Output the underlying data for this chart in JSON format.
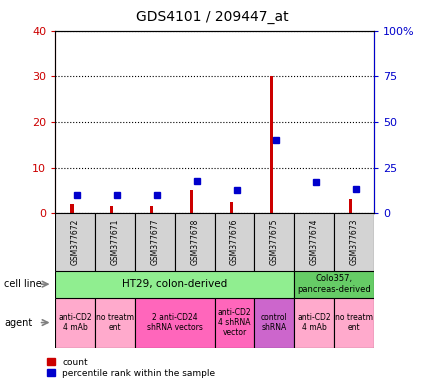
{
  "title": "GDS4101 / 209447_at",
  "samples": [
    "GSM377672",
    "GSM377671",
    "GSM377677",
    "GSM377678",
    "GSM377676",
    "GSM377675",
    "GSM377674",
    "GSM377673"
  ],
  "red_values": [
    2.0,
    1.5,
    1.5,
    5.0,
    2.5,
    30.0,
    0.0,
    3.0
  ],
  "blue_values": [
    10.0,
    10.0,
    10.0,
    17.5,
    12.5,
    40.0,
    17.0,
    13.0
  ],
  "ylim_left": [
    0,
    40
  ],
  "ylim_right": [
    0,
    100
  ],
  "yticks_left": [
    0,
    10,
    20,
    30,
    40
  ],
  "ytick_labels_left": [
    "0",
    "10",
    "20",
    "30",
    "40"
  ],
  "yticks_right": [
    0,
    25,
    50,
    75,
    100
  ],
  "ytick_labels_right": [
    "0",
    "25",
    "50",
    "75",
    "100%"
  ],
  "bar_width": 0.08,
  "red_color": "#CC0000",
  "blue_color": "#0000CC",
  "bg_color": "#FFFFFF",
  "sample_box_color": "#D3D3D3",
  "cell_line_ht29_color": "#90EE90",
  "cell_line_colo_color": "#66CC66",
  "agent_light_pink": "#FFAACC",
  "agent_mid_pink": "#FF66BB",
  "agent_purple": "#CC66CC",
  "agent_data": [
    {
      "start": 0,
      "end": 1,
      "label": "anti-CD2\n4 mAb",
      "color": "#FFAACC"
    },
    {
      "start": 1,
      "end": 2,
      "label": "no treatm\nent",
      "color": "#FFAACC"
    },
    {
      "start": 2,
      "end": 4,
      "label": "2 anti-CD24\nshRNA vectors",
      "color": "#FF66BB"
    },
    {
      "start": 4,
      "end": 5,
      "label": "anti-CD2\n4 shRNA\nvector",
      "color": "#FF66BB"
    },
    {
      "start": 5,
      "end": 6,
      "label": "control\nshRNA",
      "color": "#CC66CC"
    },
    {
      "start": 6,
      "end": 7,
      "label": "anti-CD2\n4 mAb",
      "color": "#FFAACC"
    },
    {
      "start": 7,
      "end": 8,
      "label": "no treatm\nent",
      "color": "#FFAACC"
    }
  ]
}
